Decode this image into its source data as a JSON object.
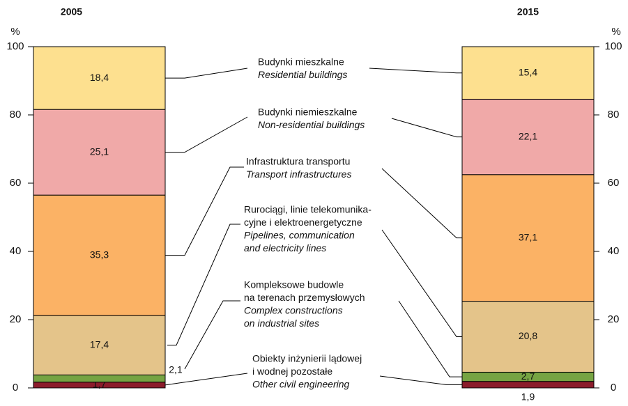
{
  "chart_data": {
    "type": "stacked_bar",
    "unit_label": "%",
    "categories": [
      "2005",
      "2015"
    ],
    "ylim": [
      0,
      100
    ],
    "yticks": [
      0,
      20,
      40,
      60,
      80,
      100
    ],
    "series": [
      {
        "label_pl": [
          "Obiekty inżynierii lądowej",
          "i wodnej pozostałe"
        ],
        "label_en": [
          "Other civil engineering"
        ],
        "color": "#8b1c2b",
        "values": [
          1.7,
          1.9
        ],
        "value_labels": [
          "1,7",
          "1,9"
        ]
      },
      {
        "label_pl": [
          "Kompleksowe budowle",
          "na terenach przemysłowych"
        ],
        "label_en": [
          "Complex constructions",
          "on industrial sites"
        ],
        "color": "#76a443",
        "values": [
          2.1,
          2.7
        ],
        "value_labels": [
          "2,1",
          "2,7"
        ]
      },
      {
        "label_pl": [
          "Rurociągi, linie telekomunika-",
          "cyjne i elektroenergetyczne"
        ],
        "label_en": [
          "Pipelines, communication",
          "and electricity lines"
        ],
        "color": "#e4c48a",
        "values": [
          17.4,
          20.8
        ],
        "value_labels": [
          "17,4",
          "20,8"
        ]
      },
      {
        "label_pl": [
          "Infrastruktura transportu"
        ],
        "label_en": [
          "Transport infrastructures"
        ],
        "color": "#fbb265",
        "values": [
          35.3,
          37.1
        ],
        "value_labels": [
          "35,3",
          "37,1"
        ]
      },
      {
        "label_pl": [
          "Budynki niemieszkalne"
        ],
        "label_en": [
          "Non-residential buildings"
        ],
        "color": "#f0a9a8",
        "values": [
          25.1,
          22.1
        ],
        "value_labels": [
          "25,1",
          "22,1"
        ]
      },
      {
        "label_pl": [
          "Budynki mieszkalne"
        ],
        "label_en": [
          "Residential buildings"
        ],
        "color": "#fde08f",
        "values": [
          18.4,
          15.4
        ],
        "value_labels": [
          "18,4",
          "15,4"
        ]
      }
    ]
  }
}
